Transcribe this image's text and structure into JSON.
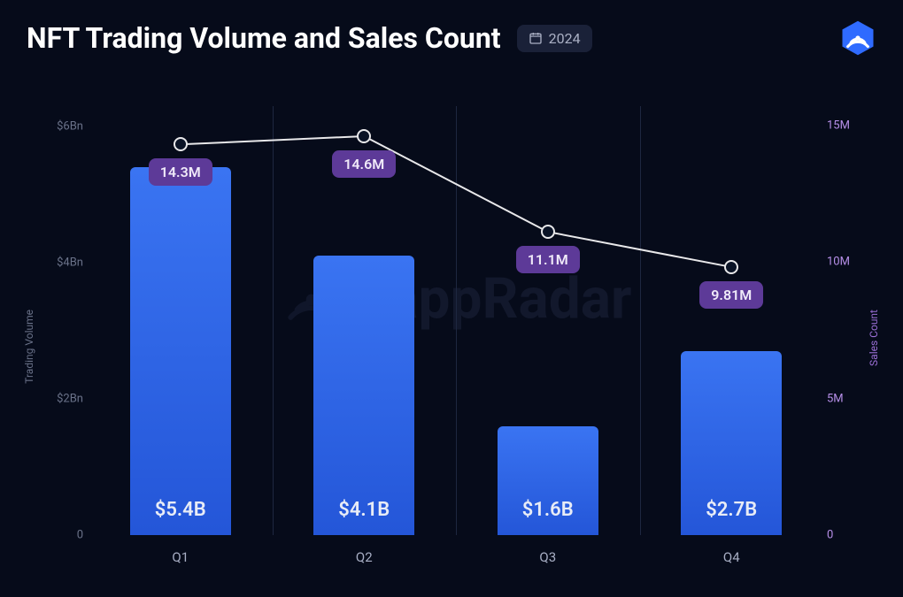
{
  "header": {
    "title": "NFT Trading Volume and Sales Count",
    "year": "2024"
  },
  "watermark": {
    "text": "DappRadar",
    "color": "#1a2138"
  },
  "chart": {
    "type": "bar+line",
    "background_color": "#060b1a",
    "grid_color": "#1e2740",
    "categories": [
      "Q1",
      "Q2",
      "Q3",
      "Q4"
    ],
    "bars": {
      "series_name": "Trading Volume",
      "values_bn": [
        5.4,
        4.1,
        1.6,
        2.7
      ],
      "labels": [
        "$5.4B",
        "$4.1B",
        "$1.6B",
        "$2.7B"
      ],
      "color_top": "#3a74f2",
      "color_bottom": "#2456d8",
      "label_color": "#e8ecf6",
      "label_fontsize": 22,
      "bar_width_frac": 0.55
    },
    "line": {
      "series_name": "Sales Count",
      "values_m": [
        14.3,
        14.6,
        11.1,
        9.81
      ],
      "labels": [
        "14.3M",
        "14.6M",
        "11.1M",
        "9.81M"
      ],
      "stroke_color": "#e8e8ea",
      "stroke_width": 2,
      "marker_fill": "#0a1326",
      "marker_stroke": "#e8e8ea",
      "marker_radius": 8,
      "label_bg": "#5d3a98",
      "label_color": "#f0eaf9",
      "label_fontsize": 16
    },
    "y_left": {
      "label": "Trading Volume",
      "min": 0,
      "max": 6.3,
      "ticks": [
        {
          "v": 0,
          "label": "0"
        },
        {
          "v": 2,
          "label": "$2Bn"
        },
        {
          "v": 4,
          "label": "$4Bn"
        },
        {
          "v": 6,
          "label": "$6Bn"
        }
      ],
      "tick_color": "#6a7289",
      "tick_fontsize": 13
    },
    "y_right": {
      "label": "Sales Count",
      "min": 0,
      "max": 15.7,
      "ticks": [
        {
          "v": 0,
          "label": "0"
        },
        {
          "v": 5,
          "label": "5M"
        },
        {
          "v": 10,
          "label": "10M"
        },
        {
          "v": 15,
          "label": "15M"
        }
      ],
      "tick_color": "#b68fe8",
      "tick_fontsize": 13
    },
    "xaxis": {
      "tick_color": "#a8afc5",
      "tick_fontsize": 15
    }
  },
  "logo": {
    "bg": "#2f6bff",
    "fg": "#ffffff"
  }
}
